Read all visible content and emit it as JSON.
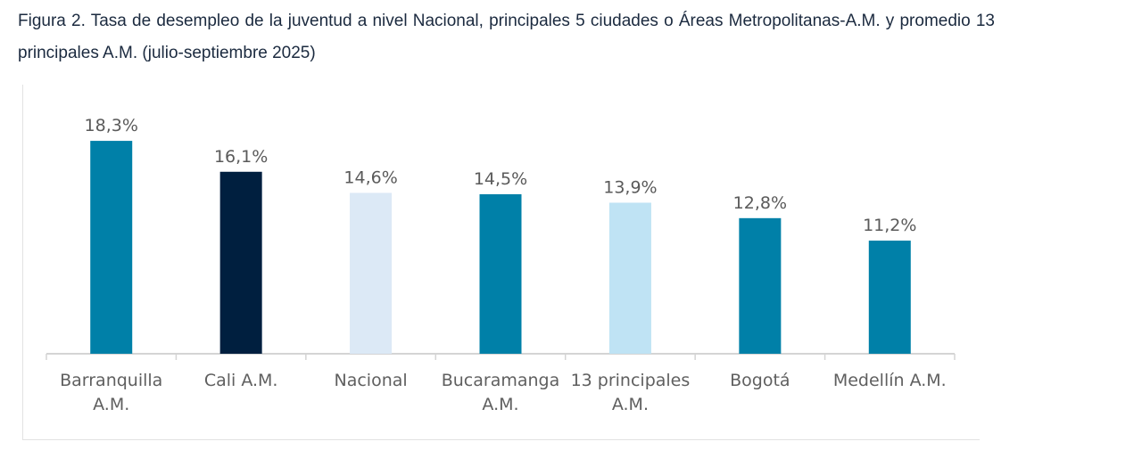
{
  "chart_data": {
    "type": "bar",
    "title": "Figura 2. Tasa de desempleo de la juventud a nivel Nacional, principales 5 ciudades o Áreas Metropolitanas-A.M. y promedio 13 principales A.M. (julio-septiembre 2025)",
    "categories": [
      [
        "Barranquilla",
        "A.M."
      ],
      [
        "Cali A.M."
      ],
      [
        "Nacional"
      ],
      [
        "Bucaramanga",
        "A.M."
      ],
      [
        "13 principales",
        "A.M."
      ],
      [
        "Bogotá"
      ],
      [
        "Medellín A.M."
      ]
    ],
    "values": [
      18.3,
      16.1,
      14.6,
      14.5,
      13.9,
      12.8,
      11.2
    ],
    "data_labels": [
      "18,3%",
      "16,1%",
      "14,6%",
      "14,5%",
      "13,9%",
      "12,8%",
      "11,2%"
    ],
    "colors": [
      "#0080a8",
      "#001f3f",
      "#dce9f6",
      "#0080a8",
      "#bfe3f4",
      "#0080a8",
      "#0080a8"
    ],
    "xlabel": "",
    "ylabel": "",
    "grid": false,
    "legend": "none"
  }
}
